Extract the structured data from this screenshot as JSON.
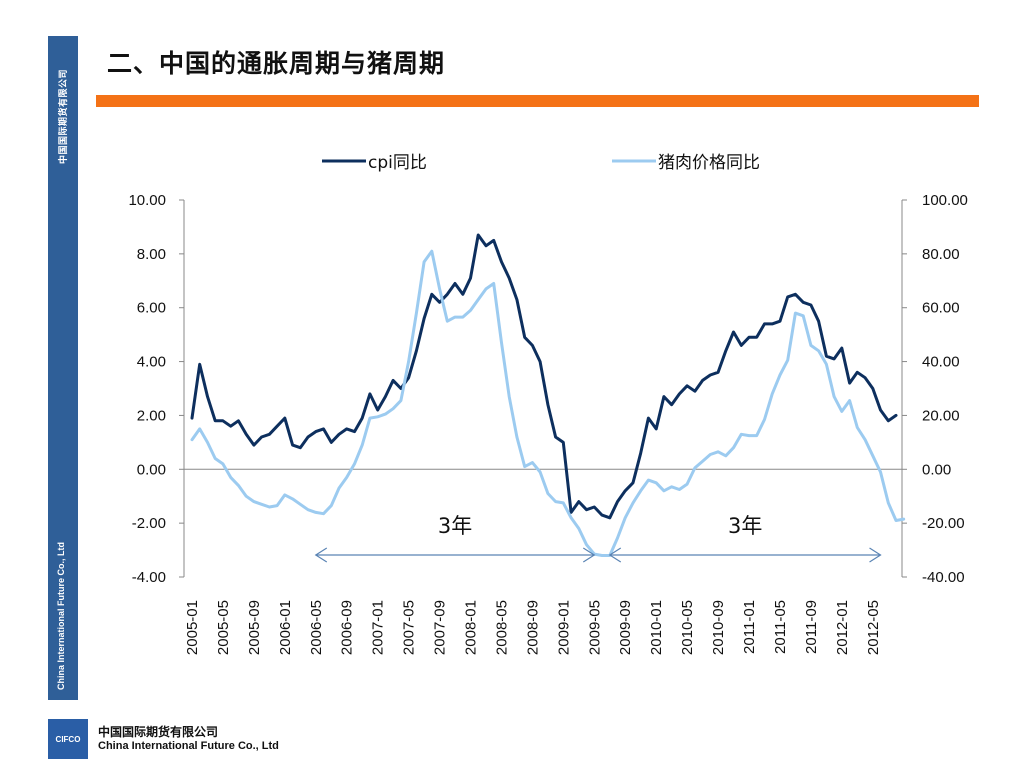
{
  "page": {
    "title": "二、中国的通胀周期与猪周期",
    "side_text_cn": "中国国际期货有限公司",
    "side_text_en": "China International Future Co., Ltd",
    "footer": {
      "logo": "CIFCO",
      "company_cn": "中国国际期货有限公司",
      "company_en": "China International Future Co., Ltd"
    },
    "colors": {
      "side_bar": "#2f5f98",
      "title_rule": "#f47216"
    }
  },
  "chart_data": {
    "type": "line",
    "title": "",
    "legend_position": "top",
    "left_axis": {
      "range": [
        -4,
        10
      ],
      "ticks": [
        "10.00",
        "8.00",
        "6.00",
        "4.00",
        "2.00",
        "0.00",
        "-2.00",
        "-4.00"
      ]
    },
    "right_axis": {
      "range": [
        -40,
        100
      ],
      "ticks": [
        "100.00",
        "80.00",
        "60.00",
        "40.00",
        "20.00",
        "0.00",
        "-20.00",
        "-40.00"
      ]
    },
    "x_ticks": [
      "2005-01",
      "2005-05",
      "2005-09",
      "2006-01",
      "2006-05",
      "2006-09",
      "2007-01",
      "2007-05",
      "2007-09",
      "2008-01",
      "2008-05",
      "2008-09",
      "2009-01",
      "2009-05",
      "2009-09",
      "2010-01",
      "2010-05",
      "2010-09",
      "2011-01",
      "2011-05",
      "2011-09",
      "2012-01",
      "2012-05"
    ],
    "x_start": "2005-01",
    "series": [
      {
        "name": "cpi同比",
        "axis": "left",
        "color": "#0d2f5e",
        "values": [
          1.9,
          3.9,
          2.7,
          1.8,
          1.8,
          1.6,
          1.8,
          1.3,
          0.9,
          1.2,
          1.3,
          1.6,
          1.9,
          0.9,
          0.8,
          1.2,
          1.4,
          1.5,
          1.0,
          1.3,
          1.5,
          1.4,
          1.9,
          2.8,
          2.2,
          2.7,
          3.3,
          3.0,
          3.4,
          4.4,
          5.6,
          6.5,
          6.2,
          6.5,
          6.9,
          6.5,
          7.1,
          8.7,
          8.3,
          8.5,
          7.7,
          7.1,
          6.3,
          4.9,
          4.6,
          4.0,
          2.4,
          1.2,
          1.0,
          -1.6,
          -1.2,
          -1.5,
          -1.4,
          -1.7,
          -1.8,
          -1.2,
          -0.8,
          -0.5,
          0.6,
          1.9,
          1.5,
          2.7,
          2.4,
          2.8,
          3.1,
          2.9,
          3.3,
          3.5,
          3.6,
          4.4,
          5.1,
          4.6,
          4.9,
          4.9,
          5.4,
          5.4,
          5.5,
          6.4,
          6.5,
          6.2,
          6.1,
          5.5,
          4.2,
          4.1,
          4.5,
          3.2,
          3.6,
          3.4,
          3.0,
          2.2,
          1.8,
          2.0
        ]
      },
      {
        "name": "猪肉价格同比",
        "axis": "right",
        "color": "#9ccbf0",
        "values": [
          11,
          15,
          10,
          4,
          2,
          -3,
          -6,
          -10,
          -12,
          -13,
          -14,
          -13.5,
          -9.5,
          -11,
          -13,
          -15,
          -16,
          -16.5,
          -13.5,
          -7,
          -3,
          2,
          9,
          19,
          19.5,
          20.5,
          22.5,
          25.5,
          40,
          58,
          77,
          81,
          67,
          55,
          56.5,
          56.5,
          59,
          63,
          67,
          69,
          47,
          27,
          12,
          1,
          2.5,
          -1,
          -9,
          -12,
          -12.5,
          -18,
          -22,
          -28,
          -31.5,
          -32,
          -32,
          -25.5,
          -18,
          -12.5,
          -8,
          -4,
          -5,
          -8,
          -6.5,
          -7.5,
          -5.5,
          0.5,
          3,
          5.5,
          6.5,
          5,
          8,
          13,
          12.5,
          12.5,
          18.5,
          28,
          35,
          40.5,
          58,
          57,
          46,
          44,
          39,
          27,
          21.5,
          25.5,
          15.5,
          11,
          5,
          -1,
          -12.5,
          -19,
          -18.5
        ]
      }
    ],
    "annotations": [
      {
        "text": "3年",
        "from": "2006-05",
        "to": "2009-05"
      },
      {
        "text": "3年",
        "from": "2009-07",
        "to": "2012-06"
      }
    ]
  }
}
